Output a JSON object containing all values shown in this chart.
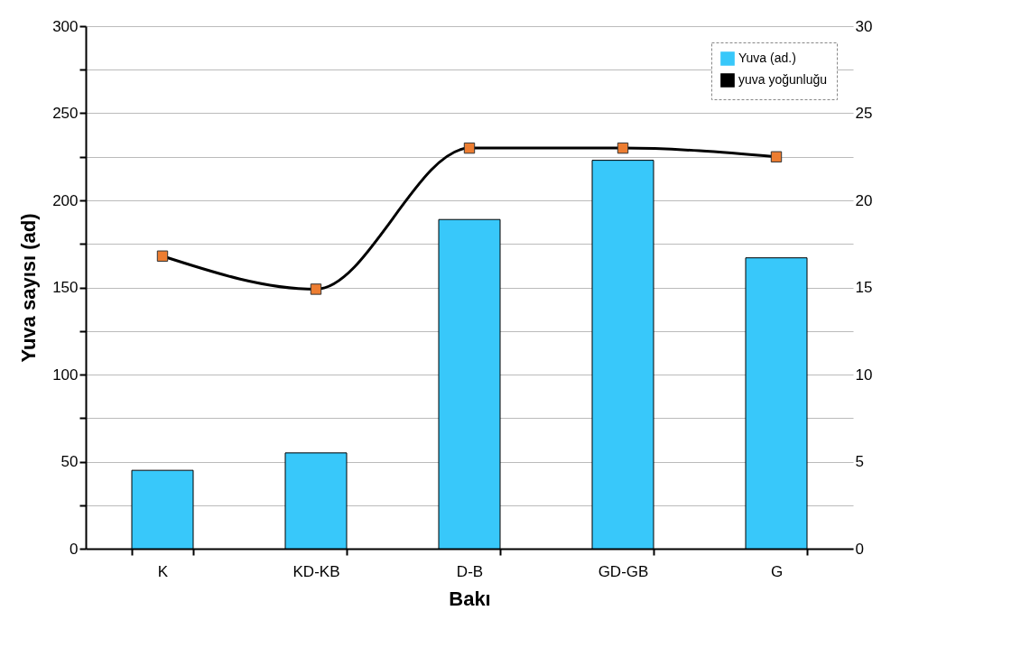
{
  "chart_data": {
    "type": "bar",
    "xlabel": "Bakı",
    "ylabel": "Yuva sayısı  (ad)",
    "categories": [
      "K",
      "KD-KB",
      "D-B",
      "GD-GB",
      "G"
    ],
    "series": [
      {
        "name": "Yuva (ad.)",
        "color": "#38c8fa",
        "values": [
          45,
          55,
          189,
          223,
          167
        ]
      },
      {
        "name": "yuva yoğunluğu",
        "type": "line",
        "axis": "y2",
        "color": "#000000",
        "marker": "square",
        "values": [
          16.8,
          14.9,
          23.0,
          23.0,
          22.5
        ]
      }
    ],
    "ylim": [
      0,
      300
    ],
    "yticks": [
      0,
      {
        "value": 25,
        "label": null
      },
      50,
      {
        "value": 75,
        "label": null
      },
      100,
      {
        "value": 125,
        "label": null
      },
      150,
      {
        "value": 175,
        "label": null
      },
      200,
      {
        "value": 225,
        "label": null
      },
      250,
      {
        "value": 275,
        "label": null
      },
      300
    ],
    "y2lim": [
      0,
      30
    ],
    "y2ticks": [
      0,
      5,
      10,
      15,
      20,
      25,
      30
    ],
    "grid": "y",
    "legend": "top right"
  }
}
